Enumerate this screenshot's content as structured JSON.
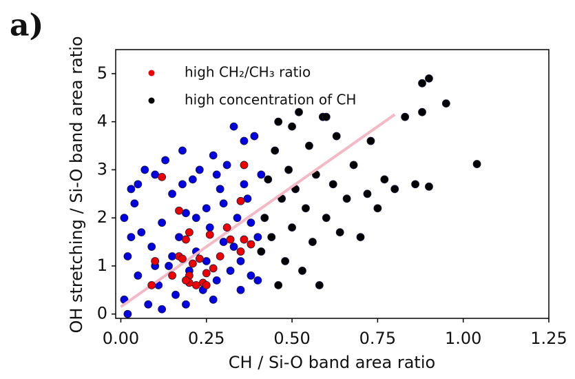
{
  "chart_data": {
    "type": "scatter",
    "panel_label": "a)",
    "xlabel": "CH / Si-O band area ratio",
    "ylabel": "OH stretching / Si-O band area ratio",
    "xlim": [
      -0.015,
      1.25
    ],
    "ylim": [
      -0.09,
      5.5
    ],
    "xticks": [
      {
        "value": 0,
        "label": "0.00"
      },
      {
        "value": 0.25,
        "label": "0.25"
      },
      {
        "value": 0.5,
        "label": "0.50"
      },
      {
        "value": 0.75,
        "label": "0.75"
      },
      {
        "value": 1,
        "label": "1.00"
      },
      {
        "value": 1.25,
        "label": "1.25"
      }
    ],
    "yticks": [
      0,
      1,
      2,
      3,
      4,
      5
    ],
    "legend": "upper left",
    "series": [
      {
        "color": "#0000e0",
        "mode": "markers",
        "x": [
          0.01,
          0.02,
          0.03,
          0.01,
          0.05,
          0.06,
          0.04,
          0.08,
          0.09,
          0.1,
          0.11,
          0.12,
          0.13,
          0.14,
          0.15,
          0.16,
          0.17,
          0.18,
          0.19,
          0.2,
          0.21,
          0.22,
          0.23,
          0.24,
          0.25,
          0.26,
          0.27,
          0.28,
          0.29,
          0.3,
          0.31,
          0.32,
          0.33,
          0.34,
          0.35,
          0.36,
          0.37,
          0.38,
          0.39,
          0.4,
          0.41,
          0.02,
          0.07,
          0.12,
          0.19,
          0.27,
          0.35,
          0.4,
          0.05,
          0.15,
          0.22,
          0.3,
          0.38,
          0.1,
          0.25,
          0.33,
          0.03,
          0.18,
          0.28,
          0.36
        ],
        "values": [
          0.3,
          1.2,
          2.6,
          2.0,
          0.8,
          1.7,
          2.3,
          0.2,
          1.4,
          2.9,
          0.6,
          1.9,
          3.2,
          1.0,
          2.5,
          0.4,
          1.6,
          3.4,
          2.1,
          0.9,
          2.8,
          1.3,
          3.0,
          0.5,
          2.2,
          1.8,
          3.3,
          0.7,
          2.6,
          1.5,
          3.1,
          0.9,
          3.9,
          2.0,
          1.1,
          3.6,
          2.4,
          0.8,
          3.7,
          1.6,
          2.9,
          0.0,
          3.0,
          0.1,
          0.2,
          0.3,
          0.5,
          0.7,
          2.7,
          1.2,
          2.0,
          2.3,
          1.9,
          1.0,
          1.1,
          1.4,
          1.6,
          2.7,
          2.9,
          2.7
        ]
      },
      {
        "name": "high concentration of CH",
        "color": "#000000",
        "mode": "markers",
        "x": [
          0.41,
          0.42,
          0.43,
          0.44,
          0.45,
          0.46,
          0.47,
          0.48,
          0.49,
          0.5,
          0.51,
          0.52,
          0.53,
          0.54,
          0.55,
          0.56,
          0.57,
          0.58,
          0.59,
          0.6,
          0.62,
          0.63,
          0.64,
          0.66,
          0.68,
          0.7,
          0.72,
          0.73,
          0.75,
          0.77,
          0.8,
          0.83,
          0.86,
          0.88,
          0.88,
          0.9,
          0.9,
          0.95,
          1.04,
          0.6,
          0.46,
          0.5
        ],
        "values": [
          1.3,
          2.0,
          2.8,
          1.6,
          3.4,
          0.6,
          2.4,
          1.1,
          3.0,
          1.8,
          2.6,
          4.2,
          0.9,
          2.2,
          3.5,
          1.5,
          2.9,
          0.6,
          4.1,
          2.0,
          2.7,
          3.7,
          1.7,
          2.4,
          3.1,
          1.6,
          2.5,
          3.6,
          2.2,
          2.8,
          2.6,
          4.1,
          2.7,
          4.8,
          4.2,
          4.9,
          2.65,
          4.38,
          3.12,
          4.1,
          4.0,
          3.9
        ]
      },
      {
        "color": "#f4b8c6",
        "mode": "line",
        "x": [
          0,
          0.8
        ],
        "values": [
          0.15,
          4.15
        ]
      },
      {
        "name": "high CH₂/CH₃ ratio",
        "color": "#ee0000",
        "mode": "markers",
        "x": [
          0.12,
          0.36,
          0.17,
          0.35,
          0.2,
          0.26,
          0.31,
          0.19,
          0.32,
          0.36,
          0.38,
          0.1,
          0.17,
          0.18,
          0.23,
          0.29,
          0.35,
          0.21,
          0.27,
          0.15,
          0.2,
          0.25,
          0.24,
          0.2,
          0.22,
          0.19,
          0.25,
          0.09
        ],
        "values": [
          2.85,
          3.1,
          2.15,
          2.35,
          1.7,
          1.65,
          1.8,
          1.55,
          1.55,
          1.55,
          1.45,
          1.1,
          1.2,
          1.15,
          1.15,
          1.2,
          1.3,
          1.05,
          0.95,
          0.8,
          0.8,
          0.85,
          0.65,
          0.65,
          0.6,
          0.7,
          0.6,
          0.6
        ]
      }
    ]
  }
}
